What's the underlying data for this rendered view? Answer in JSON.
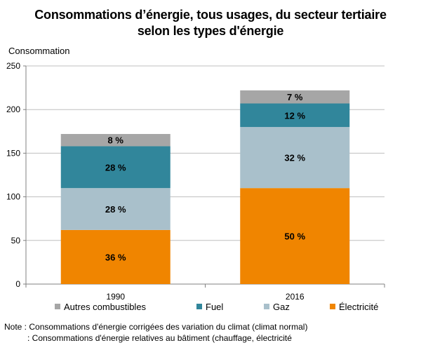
{
  "title_lines": [
    "Consommations  d’énergie, tous usages, du secteur tertiaire",
    "selon les types d'énergie"
  ],
  "notes": [
    "Note : Consommations d'énergie corrigées des variation du climat (climat normal)",
    ": Consommations d'énergie relatives au bâtiment (chauffage, électricité"
  ],
  "chart_data": {
    "type": "bar",
    "stacked": true,
    "title": "Consommations  d’énergie, tous usages, du secteur tertiaire selon les types d'énergie",
    "ylabel": "Consommation",
    "xlabel": "",
    "ylim": [
      0,
      250
    ],
    "yticks": [
      0,
      50,
      100,
      150,
      200,
      250
    ],
    "grid": true,
    "legend_position": "bottom",
    "categories": [
      "1990",
      "2016"
    ],
    "series": [
      {
        "name": "Électricité",
        "color": "#F08500",
        "values": [
          62,
          110
        ],
        "labels": [
          "36 %",
          "50 %"
        ]
      },
      {
        "name": "Gaz",
        "color": "#A9C0CB",
        "values": [
          48,
          70
        ],
        "labels": [
          "28 %",
          "32 %"
        ]
      },
      {
        "name": "Fuel",
        "color": "#31869B",
        "values": [
          48,
          27
        ],
        "labels": [
          "28 %",
          "12 %"
        ]
      },
      {
        "name": "Autres combustibles",
        "color": "#A6A6A6",
        "values": [
          14,
          15
        ],
        "labels": [
          "8 %",
          "7 %"
        ]
      }
    ],
    "legend_order": [
      "Autres combustibles",
      "Fuel",
      "Gaz",
      "Électricité"
    ]
  }
}
